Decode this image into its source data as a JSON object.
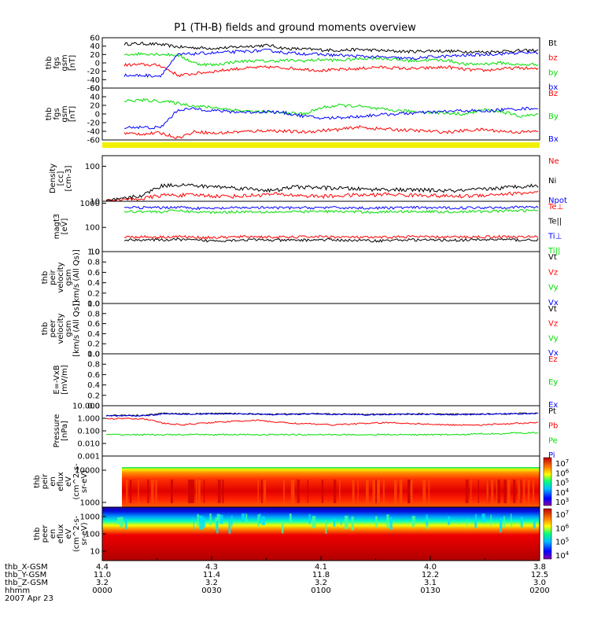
{
  "page": {
    "title": "P1 (TH-B) fields and ground moments overview"
  },
  "chart_data": [
    {
      "type": "line",
      "panel": "fgs_gsm_b",
      "ylabel": [
        "thb",
        "fgs",
        "gsm",
        "[nT]"
      ],
      "yticks": [
        "60",
        "40",
        "20",
        "0",
        "-20",
        "-40",
        "-60"
      ],
      "ylim": [
        -60,
        60
      ],
      "legend": [
        "Bt",
        "bz",
        "by",
        "bx"
      ],
      "series": [
        {
          "name": "Bt",
          "color": "#000000",
          "values": [
            45,
            46,
            44,
            38,
            36,
            35,
            37,
            40,
            42,
            34,
            33,
            31,
            30,
            32,
            30,
            28,
            27,
            29,
            28,
            27,
            26,
            28,
            29,
            30
          ]
        },
        {
          "name": "bz",
          "color": "#ff0000",
          "values": [
            -5,
            -4,
            -6,
            -30,
            -25,
            -20,
            -15,
            -12,
            -10,
            -12,
            -15,
            -18,
            -16,
            -14,
            -10,
            -12,
            -14,
            -12,
            -10,
            -16,
            -18,
            -14,
            -12,
            -15
          ]
        },
        {
          "name": "by",
          "color": "#00dd00",
          "values": [
            20,
            22,
            21,
            18,
            -2,
            -5,
            2,
            5,
            4,
            6,
            5,
            8,
            6,
            10,
            12,
            8,
            5,
            7,
            6,
            -4,
            -2,
            0,
            -5,
            -3
          ]
        },
        {
          "name": "bx",
          "color": "#0000ff",
          "values": [
            -30,
            -30,
            -31,
            20,
            22,
            24,
            26,
            28,
            30,
            24,
            22,
            20,
            18,
            16,
            14,
            12,
            10,
            14,
            16,
            18,
            20,
            22,
            24,
            25
          ]
        }
      ]
    },
    {
      "type": "line",
      "panel": "fgs_gsm_B",
      "ylabel": [
        "thb",
        "fgs",
        "gsm",
        "[nT]"
      ],
      "yticks": [
        "60",
        "40",
        "20",
        "0",
        "-20",
        "-40",
        "-60"
      ],
      "ylim": [
        -60,
        60
      ],
      "legend": [
        "Bz",
        "By",
        "Bx"
      ],
      "series": [
        {
          "name": "Bz",
          "color": "#ff0000",
          "values": [
            -45,
            -46,
            -44,
            -55,
            -40,
            -45,
            -42,
            -40,
            -38,
            -40,
            -42,
            -38,
            -36,
            -30,
            -34,
            -36,
            -38,
            -40,
            -42,
            -38,
            -36,
            -40,
            -42,
            -40
          ]
        },
        {
          "name": "By",
          "color": "#00dd00",
          "values": [
            30,
            32,
            30,
            25,
            18,
            15,
            10,
            6,
            4,
            2,
            0,
            15,
            20,
            18,
            12,
            8,
            6,
            4,
            2,
            0,
            10,
            5,
            -5,
            -2
          ]
        },
        {
          "name": "Bx",
          "color": "#0000ff",
          "values": [
            -30,
            -31,
            -32,
            10,
            12,
            8,
            5,
            4,
            6,
            2,
            -5,
            -10,
            -8,
            -6,
            -2,
            0,
            2,
            4,
            6,
            8,
            6,
            10,
            12,
            14
          ]
        }
      ]
    },
    {
      "type": "line",
      "panel": "density",
      "ylabel": [
        "Density",
        "[cc]",
        "[cm-3]"
      ],
      "yticks": [
        "100",
        "10"
      ],
      "ylog": true,
      "ylim": [
        10,
        200
      ],
      "legend": [
        "Ne",
        "Ni",
        "Npot"
      ],
      "series": [
        {
          "name": "Ne",
          "color": "#ff0000",
          "values": [
            10,
            11,
            12,
            15,
            15,
            15,
            14,
            14,
            15,
            16,
            15,
            14,
            14,
            15,
            15,
            16,
            15,
            15,
            14,
            14,
            15,
            16,
            17,
            18
          ]
        },
        {
          "name": "Ni",
          "color": "#000000",
          "values": [
            10,
            12,
            15,
            28,
            30,
            27,
            26,
            24,
            22,
            20,
            26,
            25,
            24,
            23,
            22,
            22,
            21,
            21,
            20,
            20,
            22,
            24,
            27,
            28
          ]
        }
      ]
    },
    {
      "type": "line",
      "panel": "temperature",
      "ylabel": [
        "magt3",
        "[eV]"
      ],
      "yticks": [
        "1000",
        "100",
        "10"
      ],
      "ylog": true,
      "ylim": [
        10,
        1200
      ],
      "legend": [
        "Te⊥",
        "Te||",
        "Ti⊥",
        "Ti||"
      ],
      "series": [
        {
          "name": "Te⊥",
          "color": "#ff0000",
          "values": [
            40,
            41,
            40,
            42,
            39,
            38,
            40,
            42,
            40,
            39,
            41,
            42,
            40,
            39,
            38,
            40,
            42,
            40,
            40,
            40,
            41,
            42,
            40,
            42
          ]
        },
        {
          "name": "Te||",
          "color": "#000000",
          "values": [
            30,
            31,
            30,
            32,
            29,
            28,
            30,
            31,
            30,
            29,
            30,
            31,
            30,
            29,
            28,
            30,
            31,
            30,
            30,
            30,
            31,
            32,
            30,
            31
          ]
        },
        {
          "name": "Ti⊥",
          "color": "#0000ff",
          "values": [
            650,
            660,
            650,
            700,
            620,
            600,
            640,
            660,
            650,
            640,
            650,
            660,
            650,
            640,
            630,
            650,
            660,
            650,
            640,
            650,
            660,
            680,
            690,
            700
          ]
        },
        {
          "name": "Ti||",
          "color": "#00dd00",
          "values": [
            450,
            460,
            440,
            500,
            430,
            420,
            440,
            450,
            440,
            430,
            450,
            460,
            450,
            440,
            430,
            450,
            460,
            450,
            440,
            450,
            460,
            480,
            490,
            500
          ]
        }
      ]
    },
    {
      "type": "line",
      "panel": "peir_velocity",
      "ylabel": [
        "thb",
        "peir",
        "velocity",
        "gsm",
        "[km/s (All Qs)]"
      ],
      "yticks": [
        "1.0",
        "0.8",
        "0.6",
        "0.4",
        "0.2",
        "0.0"
      ],
      "ylim": [
        0,
        1
      ],
      "legend": [
        "Vt",
        "Vz",
        "Vy",
        "Vx"
      ],
      "series": []
    },
    {
      "type": "line",
      "panel": "peer_velocity",
      "ylabel": [
        "thb",
        "peer",
        "velocity",
        "gsm",
        "[km/s (All Qs)]"
      ],
      "yticks": [
        "1.0",
        "0.8",
        "0.6",
        "0.4",
        "0.2",
        "0.0"
      ],
      "ylim": [
        0,
        1
      ],
      "legend": [
        "Vt",
        "Vz",
        "Vy",
        "Vx"
      ],
      "series": []
    },
    {
      "type": "line",
      "panel": "efield",
      "ylabel": [
        "E=-VxB",
        "[mV/m]"
      ],
      "yticks": [
        "1.0",
        "0.8",
        "0.6",
        "0.4",
        "0.2",
        "0.0"
      ],
      "ylim": [
        0,
        1
      ],
      "legend": [
        "Ez",
        "Ey",
        "Ex"
      ],
      "series": []
    },
    {
      "type": "line",
      "panel": "pressure",
      "ylabel": [
        "Pressure",
        "[nPa]"
      ],
      "yticks": [
        "10.000",
        "1.000",
        "0.100",
        "0.010",
        "0.001"
      ],
      "ylog": true,
      "ylim": [
        0.001,
        10
      ],
      "legend": [
        "Pt",
        "Pb",
        "Pe",
        "Pi"
      ],
      "series": [
        {
          "name": "Pt",
          "color": "#000000",
          "values": [
            1.6,
            1.8,
            1.7,
            2.4,
            2.2,
            2.3,
            2.4,
            2.3,
            2.2,
            2.1,
            2.2,
            2.3,
            2.2,
            2.1,
            2.0,
            2.1,
            2.2,
            2.2,
            2.1,
            2.1,
            2.2,
            2.3,
            2.4,
            2.5
          ]
        },
        {
          "name": "Pb",
          "color": "#ff0000",
          "values": [
            0.9,
            1.0,
            0.9,
            0.4,
            0.3,
            0.4,
            0.5,
            0.6,
            0.7,
            0.5,
            0.4,
            0.35,
            0.3,
            0.35,
            0.4,
            0.45,
            0.4,
            0.35,
            0.3,
            0.3,
            0.3,
            0.35,
            0.4,
            0.45
          ]
        },
        {
          "name": "Pe",
          "color": "#00dd00",
          "values": [
            0.05,
            0.05,
            0.05,
            0.05,
            0.05,
            0.05,
            0.05,
            0.05,
            0.05,
            0.05,
            0.05,
            0.05,
            0.05,
            0.05,
            0.05,
            0.05,
            0.05,
            0.05,
            0.05,
            0.05,
            0.06,
            0.06,
            0.07,
            0.07
          ]
        },
        {
          "name": "Pi",
          "color": "#0000ff",
          "values": [
            1.5,
            1.6,
            1.6,
            2.2,
            2.1,
            2.2,
            2.3,
            2.2,
            2.1,
            2.0,
            2.1,
            2.2,
            2.1,
            2.0,
            1.9,
            2.0,
            2.1,
            2.1,
            2.0,
            2.0,
            2.1,
            2.2,
            2.3,
            2.4
          ]
        }
      ]
    },
    {
      "type": "heatmap",
      "panel": "peir_spectrogram",
      "ylabel": [
        "thb",
        "peir",
        "en",
        "eflux",
        "eV",
        "(cm^2-s-",
        "sr-eV)"
      ],
      "yticks": [
        "10000",
        "1000"
      ],
      "colorbar_ticks": [
        "10^7",
        "10^6",
        "10^5",
        "10^4",
        "10^3"
      ]
    },
    {
      "type": "heatmap",
      "panel": "peer_spectrogram",
      "ylabel": [
        "thb",
        "peer",
        "en",
        "eflux",
        "eV",
        "(cm^2-s-",
        "sr-eV)"
      ],
      "yticks": [
        "1000",
        "100",
        "10"
      ],
      "colorbar_ticks": [
        "10^7",
        "10^6",
        "10^5",
        "10^4"
      ]
    }
  ],
  "footer": {
    "row_labels": [
      "thb_X-GSM",
      "thb_Y-GSM",
      "thb_Z-GSM",
      "hhmm",
      "2007 Apr 23"
    ],
    "columns": [
      [
        "4.4",
        "11.0",
        "3.2",
        "0000"
      ],
      [
        "4.3",
        "11.4",
        "3.2",
        "0030"
      ],
      [
        "4.1",
        "11.8",
        "3.2",
        "0100"
      ],
      [
        "4.0",
        "12.2",
        "3.1",
        "0130"
      ],
      [
        "3.8",
        "12.5",
        "3.0",
        "0200"
      ]
    ]
  }
}
